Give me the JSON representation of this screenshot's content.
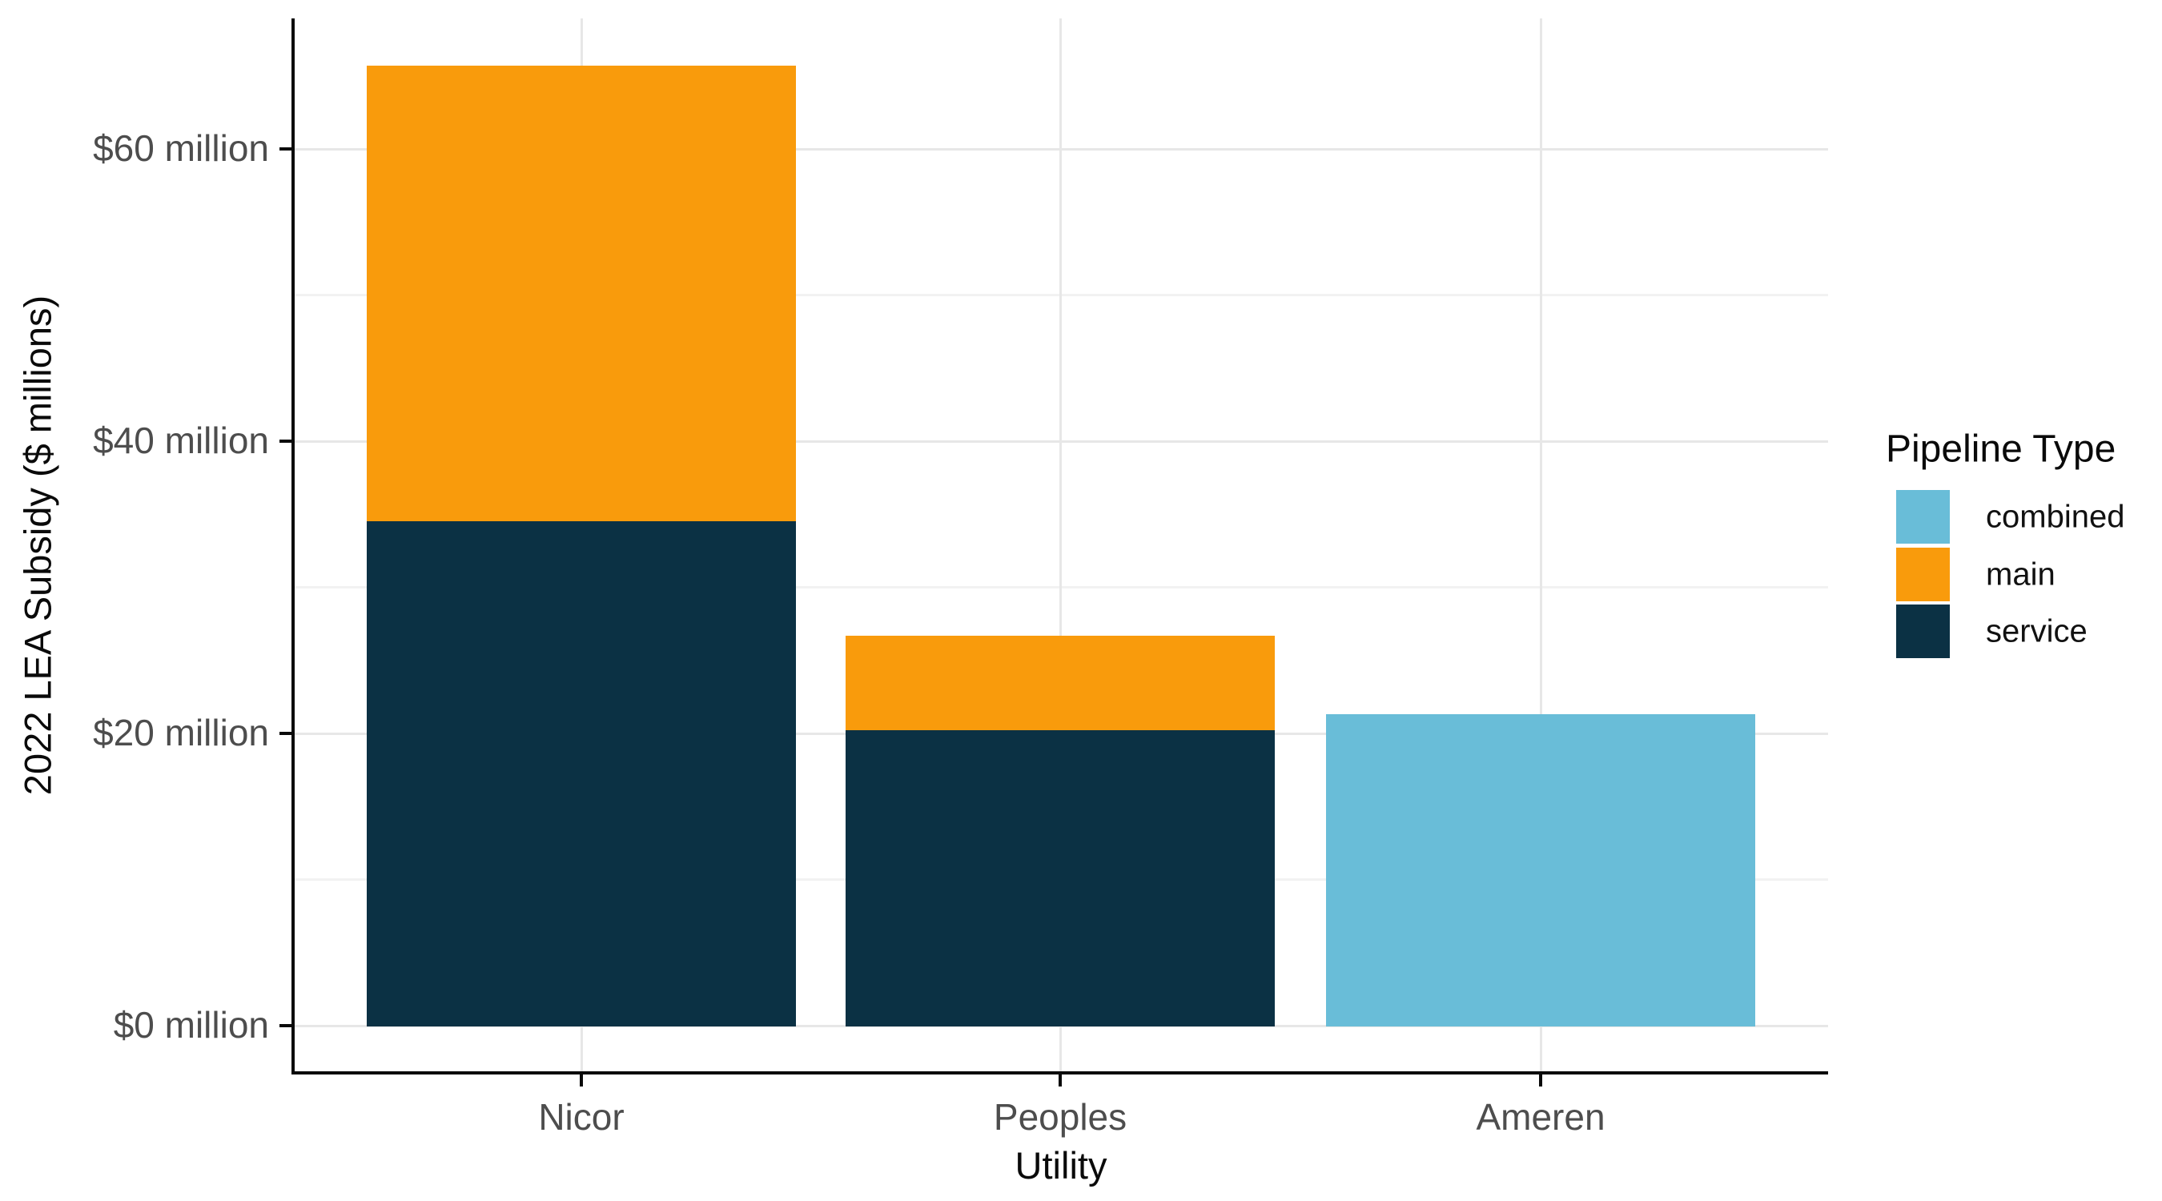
{
  "chart_data": {
    "type": "bar",
    "stacked": true,
    "title": "",
    "xlabel": "Utility",
    "ylabel": "2022 LEA Subsidy ($ millions)",
    "categories": [
      "Nicor",
      "Peoples",
      "Ameren"
    ],
    "series": [
      {
        "name": "combined",
        "color": "#69BDD8",
        "values": [
          0,
          0,
          21.3
        ]
      },
      {
        "name": "main",
        "color": "#F99B0C",
        "values": [
          31.1,
          6.4,
          0
        ]
      },
      {
        "name": "service",
        "color": "#0B3144",
        "values": [
          34.6,
          20.3,
          0
        ]
      }
    ],
    "totals": [
      65.7,
      26.7,
      21.3
    ],
    "y_ticks": [
      {
        "value": 0,
        "label": "$0 million"
      },
      {
        "value": 20,
        "label": "$20 million"
      },
      {
        "value": 40,
        "label": "$40 million"
      },
      {
        "value": 60,
        "label": "$60 million"
      }
    ],
    "y_minor_ticks": [
      10,
      30,
      50
    ],
    "ylim": [
      0,
      69
    ],
    "grid": true,
    "legend": {
      "title": "Pipeline Type",
      "position": "right",
      "items": [
        {
          "label": "combined",
          "color": "#69BDD8"
        },
        {
          "label": "main",
          "color": "#F99B0C"
        },
        {
          "label": "service",
          "color": "#0B3144"
        }
      ]
    },
    "colors": {
      "background": "#ffffff",
      "grid_major": "#e7e7e7",
      "grid_minor": "#f2f2f2",
      "axis": "#0a0a0a",
      "tick_text": "#4d4d4d",
      "title_text": "#0a0a0a"
    }
  }
}
